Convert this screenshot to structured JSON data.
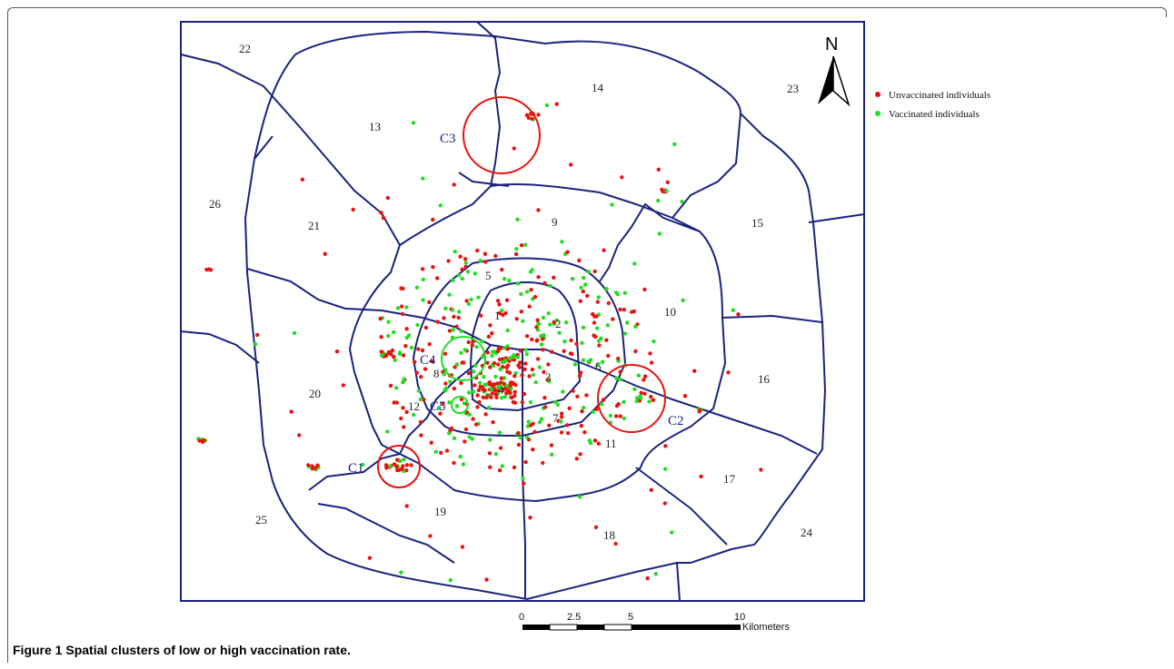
{
  "caption": {
    "label": "Figure 1",
    "text": "Spatial clusters of low or high vaccination rate."
  },
  "north_label": "N",
  "legend": [
    {
      "label": "Unvaccinated individuals",
      "color": "#e8130f"
    },
    {
      "label": "Vaccinated individuals",
      "color": "#22dd22"
    }
  ],
  "scale_bar": {
    "ticks": [
      "0",
      "2.5",
      "5",
      "10"
    ],
    "unit": "Kilometers"
  },
  "districts": [
    "1",
    "2",
    "3",
    "4",
    "5",
    "6",
    "7",
    "8",
    "9",
    "10",
    "11",
    "12",
    "13",
    "14",
    "15",
    "16",
    "17",
    "18",
    "19",
    "20",
    "21",
    "22",
    "23",
    "24",
    "25",
    "26"
  ],
  "clusters": [
    {
      "label": "C1",
      "type": "unvaccinated",
      "color": "#e8130f"
    },
    {
      "label": "C2",
      "type": "unvaccinated",
      "color": "#e8130f"
    },
    {
      "label": "C3",
      "type": "unvaccinated",
      "color": "#e8130f"
    },
    {
      "label": "C4",
      "type": "vaccinated",
      "color": "#22dd22"
    },
    {
      "label": "C5",
      "type": "vaccinated",
      "color": "#22dd22"
    }
  ],
  "colors": {
    "boundary": "#1a237e",
    "unvaccinated": "#e8130f",
    "vaccinated": "#22dd22"
  }
}
